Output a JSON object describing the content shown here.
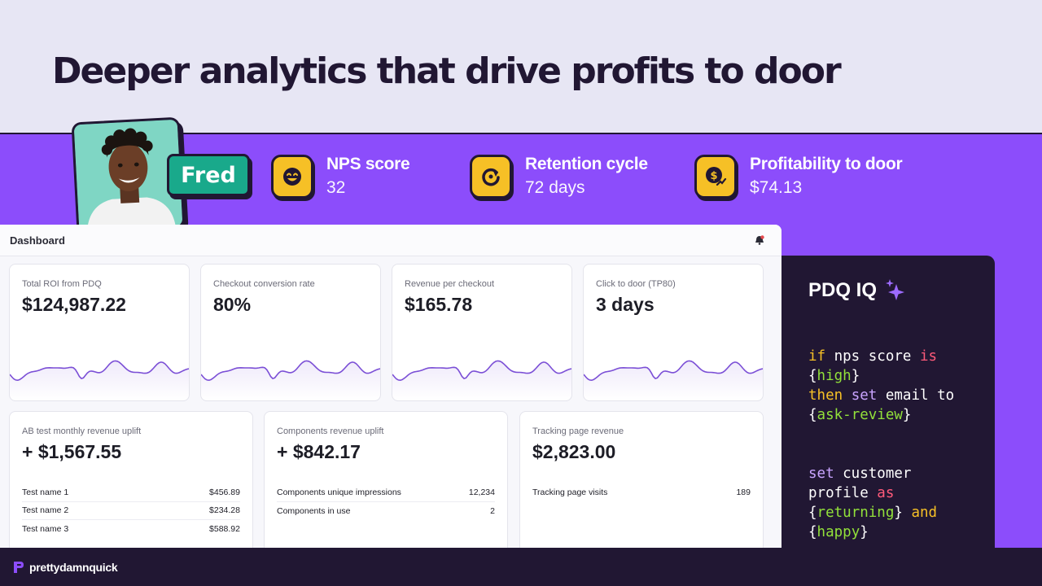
{
  "hero": {
    "title": "Deeper analytics that drive profits to door"
  },
  "profile": {
    "name": "Fred"
  },
  "metrics": [
    {
      "label": "NPS score",
      "value": "32",
      "icon": "smile-icon"
    },
    {
      "label": "Retention cycle",
      "value": "72 days",
      "icon": "refresh-cycle-icon"
    },
    {
      "label": "Profitability to door",
      "value": "$74.13",
      "icon": "dollar-coin-icon"
    }
  ],
  "dashboard": {
    "title": "Dashboard",
    "kpis": [
      {
        "label": "Total ROI from PDQ",
        "value": "$124,987.22"
      },
      {
        "label": "Checkout conversion rate",
        "value": "80%"
      },
      {
        "label": "Revenue per checkout",
        "value": "$165.78"
      },
      {
        "label": "Click to door (TP80)",
        "value": "3 days"
      }
    ],
    "tables": [
      {
        "label": "AB test monthly revenue uplift",
        "value": "+ $1,567.55",
        "rows": [
          {
            "name": "Test name 1",
            "value": "$456.89"
          },
          {
            "name": "Test name 2",
            "value": "$234.28"
          },
          {
            "name": "Test name 3",
            "value": "$588.92"
          }
        ]
      },
      {
        "label": "Components revenue uplift",
        "value": "+ $842.17",
        "rows": [
          {
            "name": "Components unique impressions",
            "value": "12,234"
          },
          {
            "name": "Components in use",
            "value": "2"
          }
        ]
      },
      {
        "label": "Tracking page revenue",
        "value": "$2,823.00",
        "rows": [
          {
            "name": "Tracking page visits",
            "value": "189"
          }
        ]
      }
    ]
  },
  "iq": {
    "title": "PDQ IQ",
    "code": {
      "l1_if": "if",
      "l1_text": " nps score ",
      "l1_is": "is",
      "l2_open": "{",
      "l2_val": "high",
      "l2_close": "}",
      "l3_then": "then",
      "l3_set": "set",
      "l3_text": " email to",
      "l4_open": "{",
      "l4_val": "ask-review",
      "l4_close": "}",
      "l5_set": "set",
      "l5_text": " customer",
      "l6_text": "profile ",
      "l6_as": "as",
      "l7_open": "{",
      "l7_val": "returning",
      "l7_close": "}",
      "l7_and": "and",
      "l8_open": "{",
      "l8_val": "happy",
      "l8_close": "}"
    }
  },
  "footer": {
    "brand": "prettydamnquick"
  },
  "colors": {
    "background": "#e7e6f4",
    "purple": "#8c4dfb",
    "dark": "#211733",
    "yellow": "#f6c026",
    "teal": "#19a98b",
    "spark": "#7b4fd6"
  }
}
